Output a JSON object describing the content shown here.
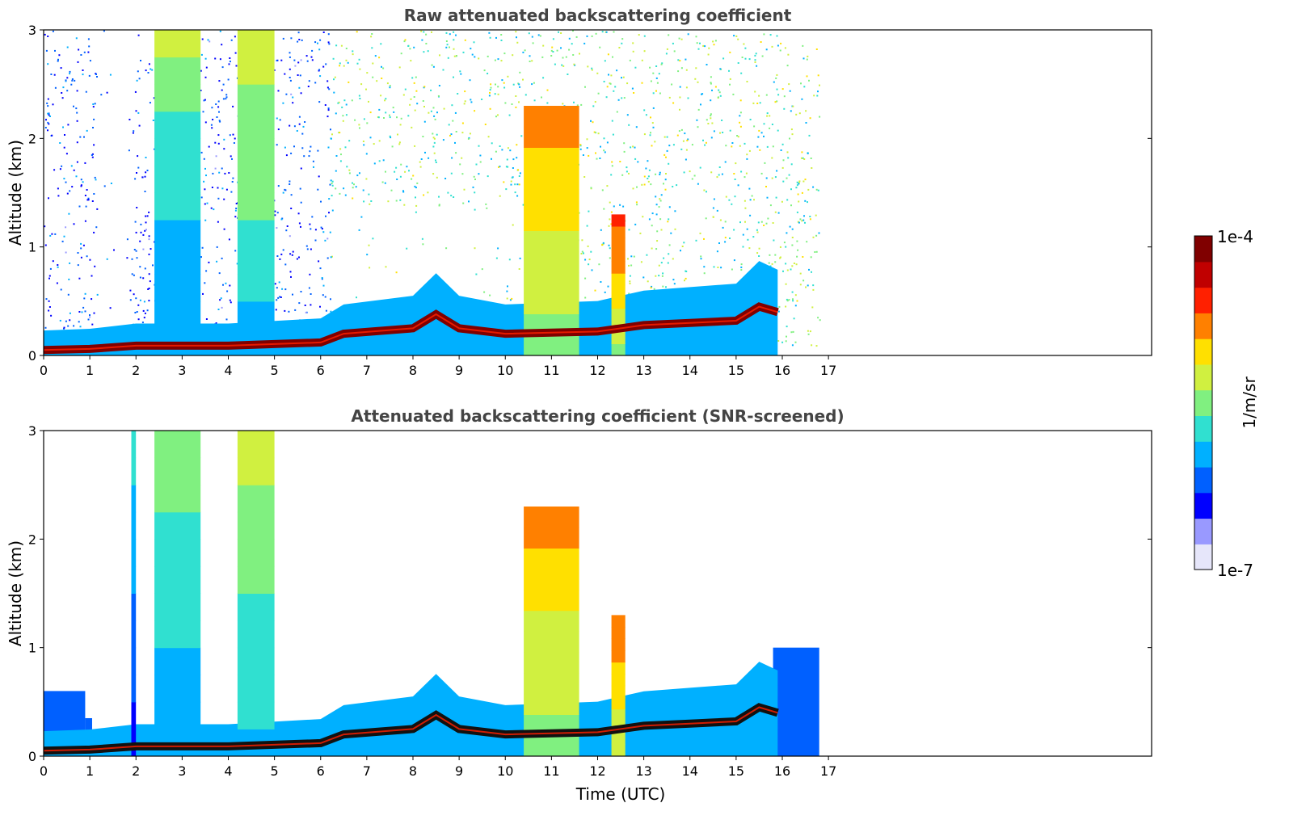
{
  "chart_data": [
    {
      "type": "heatmap",
      "title": "Raw attenuated backscattering coefficient",
      "xlabel": "",
      "ylabel": "Altitude (km)",
      "xlim": [
        0,
        24
      ],
      "ylim": [
        0,
        3
      ],
      "xticks": [
        "0",
        "1",
        "2",
        "3",
        "4",
        "5",
        "6",
        "7",
        "8",
        "9",
        "10",
        "11",
        "12",
        "13",
        "14",
        "15",
        "16",
        "17"
      ],
      "yticks": [
        "0",
        "1",
        "2",
        "3"
      ],
      "data_end_hour": 16.8,
      "noise_level": "high",
      "columns": [
        {
          "x": [
            2.4,
            3.4
          ],
          "top": 3.0,
          "level": 0.55
        },
        {
          "x": [
            4.2,
            5.0
          ],
          "top": 3.0,
          "level": 0.6
        },
        {
          "x": [
            10.4,
            11.6
          ],
          "top": 2.3,
          "level": 0.75
        },
        {
          "x": [
            12.3,
            12.6
          ],
          "top": 1.3,
          "level": 0.8
        }
      ],
      "boundary_layer": [
        {
          "x": 0,
          "y": 0.05
        },
        {
          "x": 1,
          "y": 0.06
        },
        {
          "x": 2,
          "y": 0.09
        },
        {
          "x": 4,
          "y": 0.09
        },
        {
          "x": 6,
          "y": 0.12
        },
        {
          "x": 6.5,
          "y": 0.2
        },
        {
          "x": 8,
          "y": 0.25
        },
        {
          "x": 8.5,
          "y": 0.38
        },
        {
          "x": 9,
          "y": 0.25
        },
        {
          "x": 10,
          "y": 0.2
        },
        {
          "x": 12,
          "y": 0.22
        },
        {
          "x": 13,
          "y": 0.28
        },
        {
          "x": 14,
          "y": 0.3
        },
        {
          "x": 15,
          "y": 0.32
        },
        {
          "x": 15.5,
          "y": 0.45
        },
        {
          "x": 15.9,
          "y": 0.4
        }
      ]
    },
    {
      "type": "heatmap",
      "title": "Attenuated backscattering coefficient (SNR-screened)",
      "xlabel": "Time (UTC)",
      "ylabel": "Altitude (km)",
      "xlim": [
        0,
        24
      ],
      "ylim": [
        0,
        3
      ],
      "xticks": [
        "0",
        "1",
        "2",
        "3",
        "4",
        "5",
        "6",
        "7",
        "8",
        "9",
        "10",
        "11",
        "12",
        "13",
        "14",
        "15",
        "16",
        "17"
      ],
      "yticks": [
        "0",
        "1",
        "2",
        "3"
      ],
      "data_end_hour": 16.8,
      "noise_level": "screened",
      "columns": [
        {
          "x": [
            1.9,
            2.0
          ],
          "top": 3.0,
          "level": 0.45
        },
        {
          "x": [
            2.4,
            3.4
          ],
          "top": 3.0,
          "level": 0.55
        },
        {
          "x": [
            4.2,
            5.0
          ],
          "top": 3.0,
          "level": 0.6
        },
        {
          "x": [
            10.4,
            11.6
          ],
          "top": 2.3,
          "level": 0.75
        },
        {
          "x": [
            12.3,
            12.6
          ],
          "top": 1.3,
          "level": 0.8
        }
      ],
      "boundary_layer": [
        {
          "x": 0,
          "y": 0.05
        },
        {
          "x": 1,
          "y": 0.06
        },
        {
          "x": 2,
          "y": 0.09
        },
        {
          "x": 4,
          "y": 0.09
        },
        {
          "x": 6,
          "y": 0.12
        },
        {
          "x": 6.5,
          "y": 0.2
        },
        {
          "x": 8,
          "y": 0.25
        },
        {
          "x": 8.5,
          "y": 0.38
        },
        {
          "x": 9,
          "y": 0.25
        },
        {
          "x": 10,
          "y": 0.2
        },
        {
          "x": 12,
          "y": 0.22
        },
        {
          "x": 13,
          "y": 0.28
        },
        {
          "x": 14,
          "y": 0.3
        },
        {
          "x": 15,
          "y": 0.32
        },
        {
          "x": 15.5,
          "y": 0.45
        },
        {
          "x": 15.9,
          "y": 0.4
        }
      ]
    }
  ],
  "colorbar": {
    "max_label": "1e-4",
    "min_label": "1e-7",
    "unit_label": "1/m/sr",
    "colors": [
      "#e6e6fa",
      "#9999ff",
      "#0000ff",
      "#0060ff",
      "#00b0ff",
      "#30e0d0",
      "#80f080",
      "#d0f040",
      "#ffe000",
      "#ff8000",
      "#ff2000",
      "#c00000",
      "#800000"
    ]
  }
}
